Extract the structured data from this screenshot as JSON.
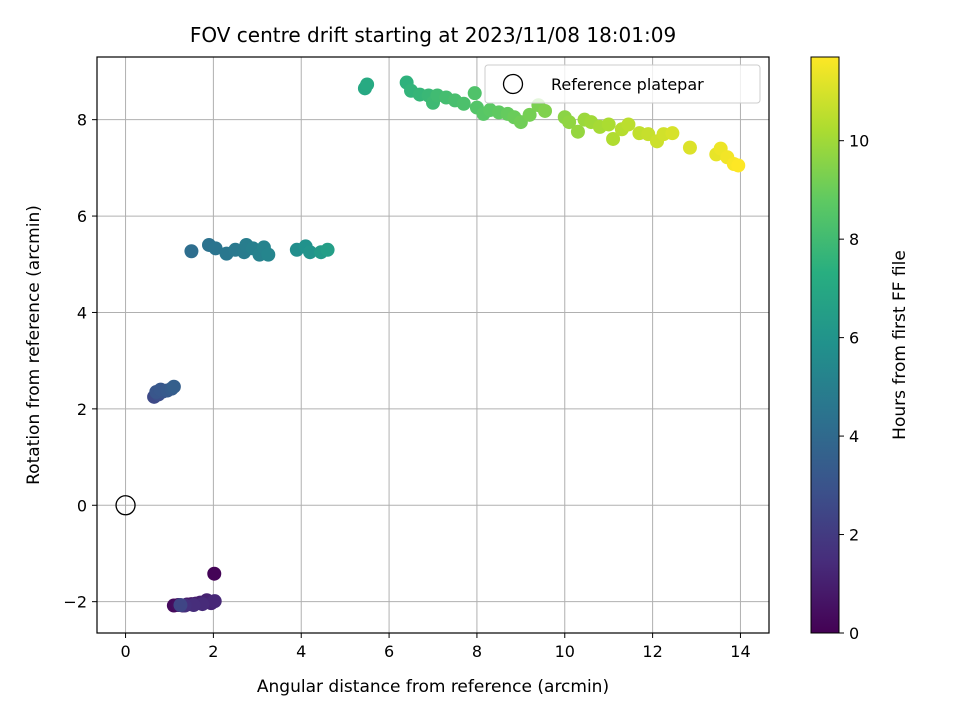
{
  "chart_data": {
    "type": "scatter",
    "title": "FOV centre drift starting at 2023/11/08 18:01:09",
    "xlabel": "Angular distance from reference (arcmin)",
    "ylabel": "Rotation from reference (arcmin)",
    "xlim": [
      -0.65,
      14.65
    ],
    "ylim": [
      -2.65,
      9.3
    ],
    "xticks": [
      0,
      2,
      4,
      6,
      8,
      10,
      12,
      14
    ],
    "yticks": [
      -2,
      0,
      2,
      4,
      6,
      8
    ],
    "grid": true,
    "legend": {
      "label": "Reference platepar",
      "placement": "top-right"
    },
    "reference_point": {
      "x": 0,
      "y": 0
    },
    "colorbar": {
      "label": "Hours from first FF file",
      "colormap": "viridis",
      "range": [
        0,
        11.7
      ],
      "ticks": [
        0,
        2,
        4,
        6,
        8,
        10
      ]
    },
    "points": [
      {
        "x": 2.02,
        "y": -1.42,
        "t": 0.1
      },
      {
        "x": 1.1,
        "y": -2.08,
        "t": 0.3
      },
      {
        "x": 1.2,
        "y": -2.07,
        "t": 0.4
      },
      {
        "x": 1.3,
        "y": -2.08,
        "t": 0.6
      },
      {
        "x": 1.4,
        "y": -2.06,
        "t": 0.7
      },
      {
        "x": 1.5,
        "y": -2.05,
        "t": 0.8
      },
      {
        "x": 1.6,
        "y": -2.04,
        "t": 0.9
      },
      {
        "x": 1.7,
        "y": -2.02,
        "t": 1.0
      },
      {
        "x": 1.85,
        "y": -1.97,
        "t": 1.1
      },
      {
        "x": 1.95,
        "y": -2.03,
        "t": 1.2
      },
      {
        "x": 2.03,
        "y": -1.99,
        "t": 1.3
      },
      {
        "x": 1.75,
        "y": -2.05,
        "t": 1.4
      },
      {
        "x": 1.55,
        "y": -2.07,
        "t": 1.5
      },
      {
        "x": 1.35,
        "y": -2.08,
        "t": 1.6
      },
      {
        "x": 1.25,
        "y": -2.07,
        "t": 2.4
      },
      {
        "x": 0.65,
        "y": 2.25,
        "t": 2.6
      },
      {
        "x": 0.75,
        "y": 2.3,
        "t": 2.8
      },
      {
        "x": 0.85,
        "y": 2.36,
        "t": 3.0
      },
      {
        "x": 0.7,
        "y": 2.35,
        "t": 3.1
      },
      {
        "x": 0.8,
        "y": 2.4,
        "t": 3.2
      },
      {
        "x": 0.95,
        "y": 2.38,
        "t": 3.3
      },
      {
        "x": 1.05,
        "y": 2.42,
        "t": 3.4
      },
      {
        "x": 1.1,
        "y": 2.46,
        "t": 3.5
      },
      {
        "x": 1.5,
        "y": 5.27,
        "t": 4.2
      },
      {
        "x": 1.9,
        "y": 5.4,
        "t": 4.4
      },
      {
        "x": 2.05,
        "y": 5.33,
        "t": 4.5
      },
      {
        "x": 2.3,
        "y": 5.22,
        "t": 4.6
      },
      {
        "x": 2.5,
        "y": 5.3,
        "t": 4.7
      },
      {
        "x": 2.7,
        "y": 5.25,
        "t": 4.8
      },
      {
        "x": 2.75,
        "y": 5.4,
        "t": 4.9
      },
      {
        "x": 2.9,
        "y": 5.33,
        "t": 5.0
      },
      {
        "x": 3.05,
        "y": 5.2,
        "t": 5.1
      },
      {
        "x": 3.15,
        "y": 5.35,
        "t": 5.2
      },
      {
        "x": 3.25,
        "y": 5.2,
        "t": 5.3
      },
      {
        "x": 3.9,
        "y": 5.3,
        "t": 5.7
      },
      {
        "x": 4.1,
        "y": 5.37,
        "t": 5.9
      },
      {
        "x": 4.2,
        "y": 5.25,
        "t": 6.0
      },
      {
        "x": 4.45,
        "y": 5.25,
        "t": 6.3
      },
      {
        "x": 4.6,
        "y": 5.3,
        "t": 6.5
      },
      {
        "x": 5.45,
        "y": 8.65,
        "t": 7.0
      },
      {
        "x": 5.5,
        "y": 8.73,
        "t": 7.1
      },
      {
        "x": 6.4,
        "y": 8.77,
        "t": 7.5
      },
      {
        "x": 6.5,
        "y": 8.6,
        "t": 7.6
      },
      {
        "x": 6.7,
        "y": 8.52,
        "t": 7.7
      },
      {
        "x": 6.9,
        "y": 8.5,
        "t": 7.8
      },
      {
        "x": 7.0,
        "y": 8.35,
        "t": 7.9
      },
      {
        "x": 7.1,
        "y": 8.5,
        "t": 8.0
      },
      {
        "x": 7.3,
        "y": 8.46,
        "t": 8.1
      },
      {
        "x": 7.5,
        "y": 8.4,
        "t": 8.2
      },
      {
        "x": 7.7,
        "y": 8.33,
        "t": 8.3
      },
      {
        "x": 7.95,
        "y": 8.55,
        "t": 8.4
      },
      {
        "x": 8.0,
        "y": 8.25,
        "t": 8.5
      },
      {
        "x": 8.15,
        "y": 8.12,
        "t": 8.6
      },
      {
        "x": 8.3,
        "y": 8.2,
        "t": 8.7
      },
      {
        "x": 8.5,
        "y": 8.15,
        "t": 8.8
      },
      {
        "x": 8.7,
        "y": 8.12,
        "t": 8.9
      },
      {
        "x": 8.85,
        "y": 8.05,
        "t": 9.0
      },
      {
        "x": 9.0,
        "y": 7.95,
        "t": 9.1
      },
      {
        "x": 9.2,
        "y": 8.1,
        "t": 9.2
      },
      {
        "x": 9.4,
        "y": 8.3,
        "t": 9.3
      },
      {
        "x": 9.55,
        "y": 8.18,
        "t": 9.4
      },
      {
        "x": 10.0,
        "y": 8.05,
        "t": 9.6
      },
      {
        "x": 10.1,
        "y": 7.95,
        "t": 9.7
      },
      {
        "x": 10.3,
        "y": 7.75,
        "t": 9.8
      },
      {
        "x": 10.45,
        "y": 8.0,
        "t": 9.9
      },
      {
        "x": 10.6,
        "y": 7.95,
        "t": 10.0
      },
      {
        "x": 10.8,
        "y": 7.85,
        "t": 10.1
      },
      {
        "x": 11.0,
        "y": 7.9,
        "t": 10.2
      },
      {
        "x": 11.1,
        "y": 7.6,
        "t": 10.3
      },
      {
        "x": 11.3,
        "y": 7.8,
        "t": 10.4
      },
      {
        "x": 11.45,
        "y": 7.9,
        "t": 10.5
      },
      {
        "x": 11.7,
        "y": 7.72,
        "t": 10.6
      },
      {
        "x": 11.9,
        "y": 7.7,
        "t": 10.7
      },
      {
        "x": 12.1,
        "y": 7.55,
        "t": 10.8
      },
      {
        "x": 12.25,
        "y": 7.7,
        "t": 10.9
      },
      {
        "x": 12.45,
        "y": 7.72,
        "t": 11.0
      },
      {
        "x": 12.85,
        "y": 7.42,
        "t": 11.1
      },
      {
        "x": 13.45,
        "y": 7.28,
        "t": 11.3
      },
      {
        "x": 13.55,
        "y": 7.4,
        "t": 11.4
      },
      {
        "x": 13.7,
        "y": 7.22,
        "t": 11.5
      },
      {
        "x": 13.85,
        "y": 7.08,
        "t": 11.6
      },
      {
        "x": 13.95,
        "y": 7.05,
        "t": 11.7
      }
    ]
  }
}
